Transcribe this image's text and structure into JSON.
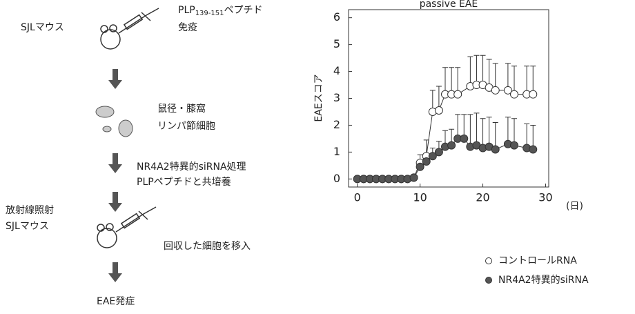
{
  "diagram": {
    "step1": {
      "label": "SJLマウス",
      "note_main": "PLP",
      "note_sub": "139-151",
      "note_tail": "ペプチド",
      "note2": "免疫"
    },
    "step2": {
      "line1": "鼠径・膝窩",
      "line2": "リンパ節細胞"
    },
    "step3": {
      "line1": "NR4A2特異的siRNA処理",
      "line2": "PLPペプチドと共培養"
    },
    "step4": {
      "label1": "放射線照射",
      "label2": "SJLマウス",
      "note": "回収した細胞を移入"
    },
    "step5": {
      "label": "EAE発症"
    }
  },
  "chart_data": {
    "type": "line",
    "title": "passive EAE",
    "ylabel": "EAEスコア",
    "xlabel": "(日)",
    "xlim": [
      -1.4,
      30.5
    ],
    "xticks": [
      0,
      10,
      20,
      30
    ],
    "ylim": [
      -0.3,
      6.3
    ],
    "yticks": [
      0,
      1,
      2,
      3,
      4,
      5,
      6
    ],
    "series": [
      {
        "name": "コントロールRNA",
        "color": "#ffffff",
        "x": [
          0,
          1,
          2,
          3,
          4,
          5,
          6,
          7,
          8,
          9,
          10,
          11,
          12,
          13,
          14,
          15,
          16,
          18,
          19,
          20,
          21,
          22,
          24,
          25,
          27,
          28
        ],
        "values": [
          0,
          0,
          0,
          0,
          0,
          0,
          0,
          0,
          0,
          0.05,
          0.6,
          0.85,
          2.5,
          2.55,
          3.15,
          3.15,
          3.15,
          3.45,
          3.5,
          3.5,
          3.4,
          3.3,
          3.3,
          3.15,
          3.15,
          3.15
        ],
        "errors": [
          0,
          0,
          0,
          0,
          0,
          0,
          0,
          0,
          0,
          0,
          0.3,
          0.6,
          0.8,
          0.9,
          1.0,
          1.0,
          1.0,
          1.1,
          1.1,
          1.1,
          1.05,
          1.0,
          1.0,
          1.05,
          1.05,
          1.05
        ]
      },
      {
        "name": "NR4A2特異的siRNA",
        "color": "#555555",
        "x": [
          0,
          1,
          2,
          3,
          4,
          5,
          6,
          7,
          8,
          9,
          10,
          11,
          12,
          13,
          14,
          15,
          16,
          17,
          18,
          19,
          20,
          21,
          22,
          24,
          25,
          27,
          28
        ],
        "values": [
          0,
          0,
          0,
          0,
          0,
          0,
          0,
          0,
          0,
          0.05,
          0.45,
          0.65,
          0.85,
          1.0,
          1.2,
          1.25,
          1.5,
          1.5,
          1.2,
          1.25,
          1.15,
          1.2,
          1.1,
          1.3,
          1.25,
          1.15,
          1.1
        ],
        "errors": [
          0,
          0,
          0,
          0,
          0,
          0,
          0,
          0,
          0,
          0,
          0.2,
          0.3,
          0.3,
          0.4,
          0.6,
          0.6,
          0.9,
          0.9,
          1.2,
          1.2,
          1.1,
          1.1,
          1.0,
          1.0,
          1.0,
          0.9,
          0.9
        ]
      }
    ]
  }
}
